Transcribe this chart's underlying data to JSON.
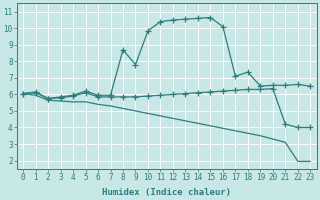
{
  "line1_x": [
    0,
    1,
    2,
    3,
    4,
    5,
    6,
    7,
    8,
    9,
    10,
    11,
    12,
    13,
    14,
    15,
    16,
    17,
    18,
    19,
    20,
    21,
    22,
    23
  ],
  "line1_y": [
    6.05,
    6.15,
    5.75,
    5.85,
    5.95,
    6.2,
    5.95,
    5.95,
    8.7,
    7.8,
    9.85,
    10.4,
    10.5,
    10.55,
    10.6,
    10.65,
    10.1,
    7.1,
    7.35,
    6.5,
    6.55,
    6.55,
    6.6,
    6.5
  ],
  "line2_x": [
    0,
    1,
    2,
    3,
    4,
    5,
    6,
    7,
    8,
    9,
    10,
    11,
    12,
    13,
    14,
    15,
    16,
    17,
    18,
    19,
    20,
    21,
    22,
    23
  ],
  "line2_y": [
    6.05,
    6.1,
    5.75,
    5.8,
    5.9,
    6.1,
    5.85,
    5.85,
    5.85,
    5.85,
    5.9,
    5.95,
    6.0,
    6.05,
    6.1,
    6.15,
    6.2,
    6.25,
    6.3,
    6.3,
    6.35,
    4.2,
    4.0,
    4.0
  ],
  "line3_x": [
    0,
    1,
    2,
    3,
    4,
    5,
    6,
    7,
    8,
    9,
    10,
    11,
    12,
    13,
    14,
    15,
    16,
    17,
    18,
    19,
    20,
    21,
    22,
    23
  ],
  "line3_y": [
    6.05,
    5.95,
    5.65,
    5.6,
    5.55,
    5.55,
    5.4,
    5.3,
    5.15,
    5.0,
    4.85,
    4.7,
    4.55,
    4.4,
    4.25,
    4.1,
    3.95,
    3.8,
    3.65,
    3.5,
    3.3,
    3.1,
    1.95,
    1.95
  ],
  "color": "#2d7d7d",
  "bg_color": "#c8e8e8",
  "grid_major_color": "#b0d8d8",
  "grid_minor_color": "#b0d8d8",
  "xlabel": "Humidex (Indice chaleur)",
  "xlim": [
    -0.5,
    23.5
  ],
  "ylim": [
    1.5,
    11.5
  ],
  "xticks": [
    0,
    1,
    2,
    3,
    4,
    5,
    6,
    7,
    8,
    9,
    10,
    11,
    12,
    13,
    14,
    15,
    16,
    17,
    18,
    19,
    20,
    21,
    22,
    23
  ],
  "yticks": [
    2,
    3,
    4,
    5,
    6,
    7,
    8,
    9,
    10,
    11
  ],
  "marker": "+",
  "markersize": 4,
  "linewidth": 0.9,
  "tick_fontsize": 5.5,
  "label_fontsize": 6.5
}
